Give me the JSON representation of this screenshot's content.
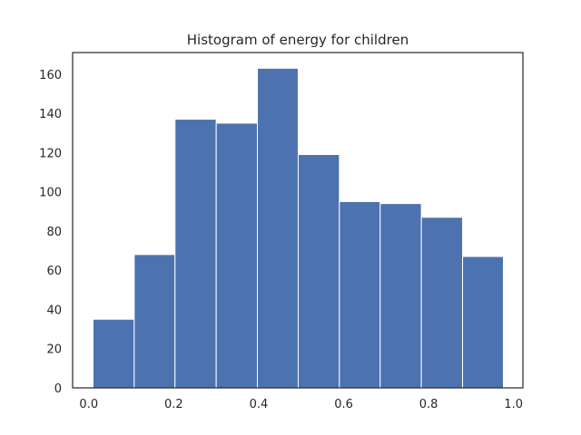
{
  "chart_data": {
    "type": "bar",
    "title": "Histogram of energy for children",
    "xlabel": "",
    "ylabel": "",
    "xlim": [
      -0.038,
      1.022
    ],
    "ylim": [
      0,
      171
    ],
    "x_ticks": [
      "0.0",
      "0.2",
      "0.4",
      "0.6",
      "0.8",
      "1.0"
    ],
    "y_ticks": [
      "0",
      "20",
      "40",
      "60",
      "80",
      "100",
      "120",
      "140",
      "160"
    ],
    "bins": [
      [
        0.01,
        0.107
      ],
      [
        0.107,
        0.203
      ],
      [
        0.203,
        0.3
      ],
      [
        0.3,
        0.397
      ],
      [
        0.397,
        0.493
      ],
      [
        0.493,
        0.59
      ],
      [
        0.59,
        0.686
      ],
      [
        0.686,
        0.783
      ],
      [
        0.783,
        0.88
      ],
      [
        0.88,
        0.976
      ]
    ],
    "values": [
      35,
      68,
      137,
      135,
      163,
      119,
      95,
      94,
      87,
      67
    ],
    "bar_color": "#4c72b0",
    "grid": false,
    "legend": "none"
  }
}
